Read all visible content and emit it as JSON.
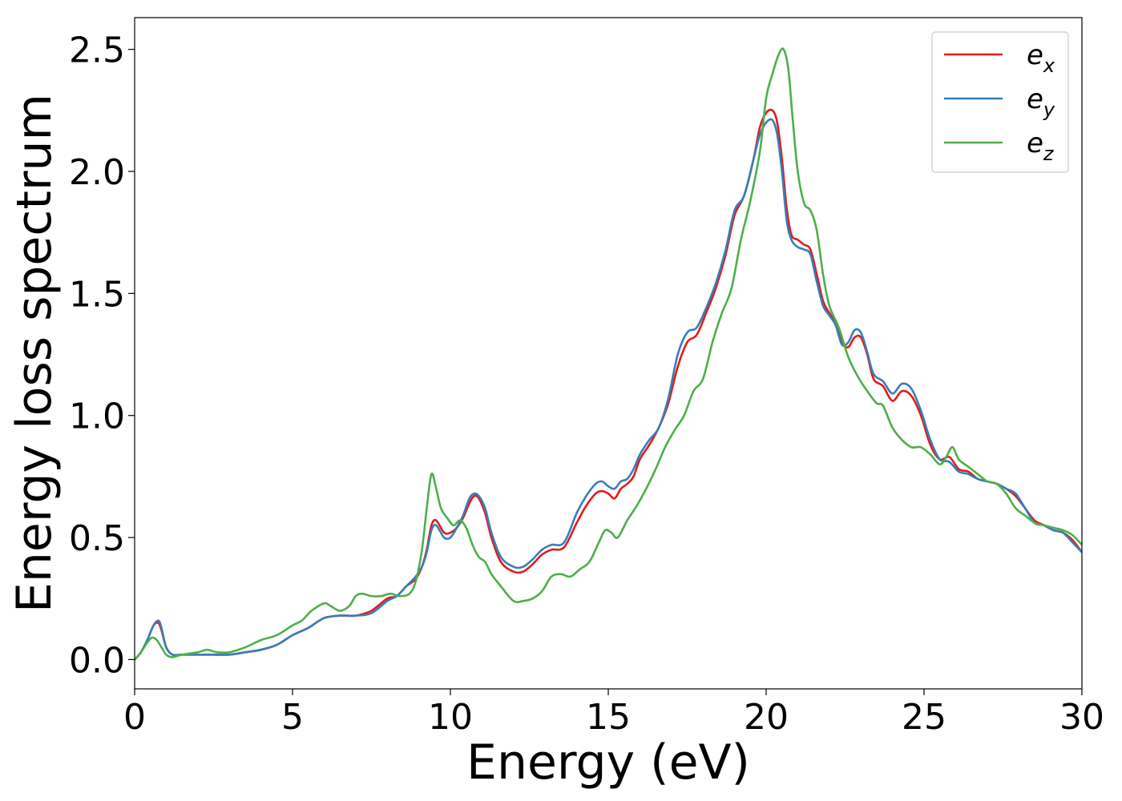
{
  "chart_data": {
    "type": "line",
    "title": "",
    "xlabel": "Energy (eV)",
    "ylabel": "Energy loss spectrum",
    "xlim": [
      0,
      30
    ],
    "ylim": [
      -0.12,
      2.63
    ],
    "xticks": [
      0,
      5,
      10,
      15,
      20,
      25,
      30
    ],
    "xtick_labels": [
      "0",
      "5",
      "10",
      "15",
      "20",
      "25",
      "30"
    ],
    "yticks": [
      0.0,
      0.5,
      1.0,
      1.5,
      2.0,
      2.5
    ],
    "ytick_labels": [
      "0.0",
      "0.5",
      "1.0",
      "1.5",
      "2.0",
      "2.5"
    ],
    "grid": false,
    "legend": "top-right",
    "series": [
      {
        "name": "e_x",
        "label_base": "e",
        "label_sub": "x",
        "color": "#e41a1c",
        "x": [
          0,
          0.2,
          0.4,
          0.6,
          0.75,
          0.85,
          1.0,
          1.2,
          1.5,
          2,
          2.5,
          3,
          3.5,
          4,
          4.5,
          5,
          5.5,
          6,
          6.5,
          7,
          7.5,
          8,
          8.3,
          8.6,
          8.9,
          9.1,
          9.25,
          9.4,
          9.55,
          9.8,
          10.0,
          10.2,
          10.4,
          10.6,
          10.75,
          10.9,
          11.1,
          11.3,
          11.6,
          12.0,
          12.3,
          12.6,
          12.9,
          13.2,
          13.6,
          14.0,
          14.3,
          14.6,
          14.8,
          15.0,
          15.2,
          15.4,
          15.6,
          15.8,
          16.0,
          16.3,
          16.6,
          16.9,
          17.2,
          17.5,
          17.8,
          18.1,
          18.4,
          18.7,
          19.0,
          19.3,
          19.6,
          19.8,
          20.0,
          20.2,
          20.35,
          20.5,
          20.65,
          20.8,
          21.0,
          21.2,
          21.4,
          21.6,
          21.8,
          22.0,
          22.2,
          22.4,
          22.6,
          22.8,
          23.0,
          23.2,
          23.4,
          23.7,
          24.0,
          24.3,
          24.6,
          24.9,
          25.2,
          25.5,
          25.8,
          26.1,
          26.4,
          26.7,
          27.0,
          27.3,
          27.6,
          27.9,
          28.2,
          28.5,
          28.8,
          29.1,
          29.4,
          29.7,
          30.0
        ],
        "values": [
          0.0,
          0.03,
          0.08,
          0.14,
          0.15,
          0.12,
          0.05,
          0.02,
          0.02,
          0.02,
          0.02,
          0.02,
          0.03,
          0.04,
          0.06,
          0.1,
          0.13,
          0.17,
          0.18,
          0.18,
          0.2,
          0.25,
          0.26,
          0.3,
          0.33,
          0.38,
          0.45,
          0.55,
          0.57,
          0.52,
          0.52,
          0.54,
          0.58,
          0.64,
          0.67,
          0.66,
          0.6,
          0.5,
          0.4,
          0.36,
          0.36,
          0.39,
          0.43,
          0.45,
          0.46,
          0.56,
          0.63,
          0.68,
          0.69,
          0.68,
          0.66,
          0.7,
          0.72,
          0.75,
          0.82,
          0.88,
          0.95,
          1.05,
          1.2,
          1.3,
          1.33,
          1.42,
          1.52,
          1.65,
          1.82,
          1.9,
          2.05,
          2.18,
          2.24,
          2.25,
          2.2,
          2.05,
          1.85,
          1.74,
          1.72,
          1.7,
          1.68,
          1.58,
          1.47,
          1.42,
          1.38,
          1.3,
          1.28,
          1.32,
          1.32,
          1.25,
          1.15,
          1.12,
          1.06,
          1.1,
          1.08,
          1.0,
          0.88,
          0.82,
          0.83,
          0.78,
          0.77,
          0.74,
          0.73,
          0.72,
          0.7,
          0.67,
          0.62,
          0.57,
          0.55,
          0.53,
          0.52,
          0.49,
          0.44
        ]
      },
      {
        "name": "e_y",
        "label_base": "e",
        "label_sub": "y",
        "color": "#377eb8",
        "x": [
          0,
          0.2,
          0.4,
          0.6,
          0.75,
          0.85,
          1.0,
          1.2,
          1.5,
          2,
          2.5,
          3,
          3.5,
          4,
          4.5,
          5,
          5.5,
          6,
          6.5,
          7,
          7.5,
          8,
          8.3,
          8.6,
          8.9,
          9.1,
          9.25,
          9.4,
          9.55,
          9.8,
          10.0,
          10.2,
          10.4,
          10.6,
          10.75,
          10.9,
          11.1,
          11.3,
          11.6,
          12.0,
          12.3,
          12.6,
          12.9,
          13.2,
          13.6,
          14.0,
          14.3,
          14.6,
          14.8,
          15.0,
          15.2,
          15.4,
          15.6,
          15.8,
          16.0,
          16.3,
          16.6,
          16.9,
          17.2,
          17.5,
          17.8,
          18.1,
          18.4,
          18.7,
          19.0,
          19.3,
          19.6,
          19.8,
          20.0,
          20.2,
          20.35,
          20.5,
          20.65,
          20.8,
          21.0,
          21.2,
          21.4,
          21.6,
          21.8,
          22.0,
          22.2,
          22.4,
          22.6,
          22.8,
          23.0,
          23.2,
          23.4,
          23.7,
          24.0,
          24.3,
          24.6,
          24.9,
          25.2,
          25.5,
          25.8,
          26.1,
          26.4,
          26.7,
          27.0,
          27.3,
          27.6,
          27.9,
          28.2,
          28.5,
          28.8,
          29.1,
          29.4,
          29.7,
          30.0
        ],
        "values": [
          0.0,
          0.03,
          0.08,
          0.14,
          0.16,
          0.13,
          0.05,
          0.02,
          0.02,
          0.02,
          0.02,
          0.02,
          0.03,
          0.04,
          0.06,
          0.1,
          0.13,
          0.17,
          0.18,
          0.18,
          0.19,
          0.24,
          0.26,
          0.3,
          0.34,
          0.38,
          0.44,
          0.53,
          0.55,
          0.5,
          0.5,
          0.54,
          0.59,
          0.66,
          0.68,
          0.67,
          0.62,
          0.52,
          0.42,
          0.38,
          0.38,
          0.41,
          0.45,
          0.47,
          0.48,
          0.6,
          0.67,
          0.72,
          0.73,
          0.71,
          0.7,
          0.73,
          0.74,
          0.78,
          0.84,
          0.9,
          0.95,
          1.07,
          1.25,
          1.34,
          1.36,
          1.44,
          1.54,
          1.67,
          1.84,
          1.9,
          2.05,
          2.15,
          2.2,
          2.21,
          2.15,
          2.0,
          1.8,
          1.72,
          1.69,
          1.68,
          1.66,
          1.55,
          1.45,
          1.41,
          1.37,
          1.29,
          1.3,
          1.35,
          1.34,
          1.26,
          1.17,
          1.14,
          1.09,
          1.13,
          1.11,
          1.02,
          0.9,
          0.82,
          0.81,
          0.77,
          0.76,
          0.74,
          0.73,
          0.72,
          0.7,
          0.68,
          0.62,
          0.56,
          0.55,
          0.53,
          0.52,
          0.48,
          0.44
        ]
      },
      {
        "name": "e_z",
        "label_base": "e",
        "label_sub": "z",
        "color": "#4daf4a",
        "x": [
          0,
          0.2,
          0.4,
          0.55,
          0.7,
          0.85,
          1.0,
          1.2,
          1.5,
          2.0,
          2.3,
          2.6,
          3.0,
          3.5,
          4.0,
          4.5,
          5.0,
          5.3,
          5.6,
          6.0,
          6.2,
          6.5,
          6.8,
          7.0,
          7.2,
          7.5,
          7.8,
          8.1,
          8.4,
          8.7,
          8.9,
          9.1,
          9.25,
          9.4,
          9.55,
          9.7,
          9.9,
          10.1,
          10.3,
          10.5,
          10.7,
          10.9,
          11.1,
          11.3,
          11.6,
          12.0,
          12.3,
          12.6,
          12.9,
          13.2,
          13.5,
          13.8,
          14.1,
          14.4,
          14.7,
          14.9,
          15.1,
          15.3,
          15.6,
          15.9,
          16.2,
          16.5,
          16.8,
          17.1,
          17.4,
          17.7,
          18.0,
          18.3,
          18.6,
          18.9,
          19.2,
          19.5,
          19.8,
          20.0,
          20.2,
          20.4,
          20.55,
          20.7,
          20.85,
          21.0,
          21.2,
          21.4,
          21.6,
          21.8,
          22.0,
          22.3,
          22.6,
          22.9,
          23.2,
          23.5,
          23.7,
          24.0,
          24.3,
          24.6,
          24.9,
          25.2,
          25.5,
          25.7,
          25.9,
          26.1,
          26.4,
          26.7,
          27.0,
          27.3,
          27.6,
          27.9,
          28.2,
          28.5,
          28.8,
          29.1,
          29.4,
          29.7,
          30.0
        ],
        "values": [
          0.0,
          0.03,
          0.07,
          0.09,
          0.08,
          0.05,
          0.02,
          0.01,
          0.02,
          0.03,
          0.04,
          0.03,
          0.03,
          0.05,
          0.08,
          0.1,
          0.14,
          0.16,
          0.2,
          0.23,
          0.22,
          0.2,
          0.22,
          0.26,
          0.27,
          0.26,
          0.26,
          0.27,
          0.26,
          0.27,
          0.32,
          0.45,
          0.62,
          0.76,
          0.7,
          0.62,
          0.58,
          0.55,
          0.57,
          0.54,
          0.47,
          0.42,
          0.4,
          0.35,
          0.3,
          0.24,
          0.24,
          0.25,
          0.28,
          0.34,
          0.35,
          0.34,
          0.37,
          0.4,
          0.48,
          0.53,
          0.52,
          0.5,
          0.57,
          0.63,
          0.7,
          0.78,
          0.87,
          0.94,
          1.0,
          1.1,
          1.15,
          1.3,
          1.42,
          1.52,
          1.72,
          1.88,
          2.08,
          2.3,
          2.4,
          2.48,
          2.5,
          2.42,
          2.2,
          2.0,
          1.87,
          1.84,
          1.76,
          1.58,
          1.45,
          1.36,
          1.24,
          1.16,
          1.1,
          1.05,
          1.04,
          0.95,
          0.9,
          0.87,
          0.87,
          0.84,
          0.8,
          0.83,
          0.87,
          0.82,
          0.79,
          0.76,
          0.73,
          0.72,
          0.68,
          0.62,
          0.59,
          0.56,
          0.55,
          0.54,
          0.53,
          0.51,
          0.47
        ]
      }
    ]
  }
}
